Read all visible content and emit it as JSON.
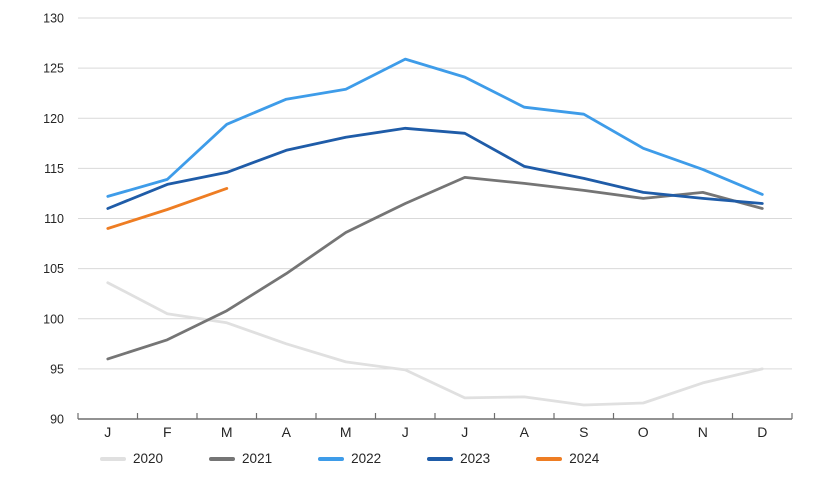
{
  "page": {
    "background_color": "#ffffff"
  },
  "chart_data": {
    "type": "line",
    "title": "",
    "xlabel": "",
    "ylabel": "",
    "x_categories": [
      "J",
      "F",
      "M",
      "A",
      "M",
      "J",
      "J",
      "A",
      "S",
      "O",
      "N",
      "D"
    ],
    "y_ticks": [
      90,
      95,
      100,
      105,
      110,
      115,
      120,
      125,
      130
    ],
    "ylim": [
      90,
      130
    ],
    "grid": "horizontal",
    "legend_position": "bottom",
    "gridline_color": "#D9D9D9",
    "axis_color": "#6E6E6E",
    "label_color": "#262626",
    "series": [
      {
        "name": "2020",
        "color": "#E0E0E0",
        "values": [
          103.6,
          100.5,
          99.6,
          97.5,
          95.7,
          94.9,
          92.1,
          92.2,
          91.4,
          91.6,
          93.6,
          95.0
        ]
      },
      {
        "name": "2021",
        "color": "#757575",
        "values": [
          96.0,
          97.9,
          100.8,
          104.5,
          108.6,
          111.5,
          114.1,
          113.5,
          112.8,
          112.0,
          112.6,
          111.0
        ]
      },
      {
        "name": "2022",
        "color": "#3E9CE9",
        "values": [
          112.2,
          113.9,
          119.4,
          121.9,
          122.9,
          125.9,
          124.1,
          121.1,
          120.4,
          117.0,
          114.9,
          112.4
        ]
      },
      {
        "name": "2023",
        "color": "#1F5CA8",
        "values": [
          111.0,
          113.4,
          114.6,
          116.8,
          118.1,
          119.0,
          118.5,
          115.2,
          114.0,
          112.6,
          112.0,
          111.5
        ]
      },
      {
        "name": "2024",
        "color": "#EE7D23",
        "values": [
          109.0,
          110.9,
          113.0
        ]
      }
    ]
  }
}
